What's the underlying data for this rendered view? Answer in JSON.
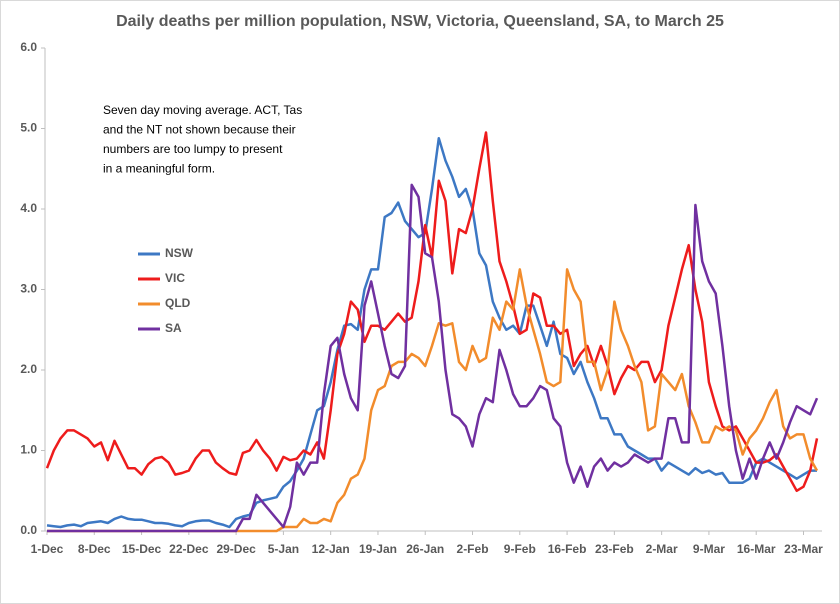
{
  "chart_data": {
    "type": "line",
    "title": "Daily deaths per million population, NSW, Victoria, Queensland, SA, to March 25",
    "annotation": [
      "Seven day moving average. ACT, Tas",
      "and the NT not shown because their",
      "numbers are too lumpy to present",
      "in a meaningful form."
    ],
    "categories": [
      "1-Dec",
      null,
      null,
      null,
      null,
      null,
      null,
      "8-Dec",
      null,
      null,
      null,
      null,
      null,
      null,
      "15-Dec",
      null,
      null,
      null,
      null,
      null,
      null,
      "22-Dec",
      null,
      null,
      null,
      null,
      null,
      null,
      "29-Dec",
      null,
      null,
      null,
      null,
      null,
      null,
      "5-Jan",
      null,
      null,
      null,
      null,
      null,
      null,
      "12-Jan",
      null,
      null,
      null,
      null,
      null,
      null,
      "19-Jan",
      null,
      null,
      null,
      null,
      null,
      null,
      "26-Jan",
      null,
      null,
      null,
      null,
      null,
      null,
      "2-Feb",
      null,
      null,
      null,
      null,
      null,
      null,
      "9-Feb",
      null,
      null,
      null,
      null,
      null,
      null,
      "16-Feb",
      null,
      null,
      null,
      null,
      null,
      null,
      "23-Feb",
      null,
      null,
      null,
      null,
      null,
      null,
      "2-Mar",
      null,
      null,
      null,
      null,
      null,
      null,
      "9-Mar",
      null,
      null,
      null,
      null,
      null,
      null,
      "16-Mar",
      null,
      null,
      null,
      null,
      null,
      null,
      "23-Mar",
      null,
      null
    ],
    "series": [
      {
        "name": "NSW",
        "color": "#3d78c4",
        "values": [
          0.07,
          0.06,
          0.05,
          0.07,
          0.08,
          0.06,
          0.1,
          0.11,
          0.12,
          0.1,
          0.15,
          0.18,
          0.15,
          0.14,
          0.14,
          0.12,
          0.1,
          0.1,
          0.09,
          0.07,
          0.06,
          0.1,
          0.12,
          0.13,
          0.13,
          0.1,
          0.08,
          0.05,
          0.15,
          0.18,
          0.2,
          0.35,
          0.38,
          0.4,
          0.42,
          0.55,
          0.62,
          0.75,
          0.9,
          1.2,
          1.5,
          1.55,
          1.85,
          2.25,
          2.55,
          2.57,
          2.5,
          3.0,
          3.25,
          3.25,
          3.9,
          3.95,
          4.08,
          3.85,
          3.75,
          3.65,
          3.7,
          4.25,
          4.88,
          4.6,
          4.4,
          4.15,
          4.25,
          4.0,
          3.45,
          3.3,
          2.85,
          2.65,
          2.5,
          2.55,
          2.45,
          2.8,
          2.8,
          2.55,
          2.3,
          2.6,
          2.2,
          2.15,
          1.95,
          2.1,
          1.85,
          1.65,
          1.4,
          1.4,
          1.2,
          1.2,
          1.05,
          1.0,
          0.95,
          0.9,
          0.9,
          0.75,
          0.85,
          0.8,
          0.75,
          0.7,
          0.78,
          0.72,
          0.75,
          0.7,
          0.72,
          0.6,
          0.6,
          0.6,
          0.65,
          0.85,
          0.9,
          0.85,
          0.8,
          0.75,
          0.7,
          0.65,
          0.7,
          0.75,
          0.75
        ]
      },
      {
        "name": "VIC",
        "color": "#ee1c1c",
        "values": [
          0.78,
          1.0,
          1.15,
          1.25,
          1.25,
          1.2,
          1.15,
          1.05,
          1.1,
          0.88,
          1.12,
          0.95,
          0.78,
          0.78,
          0.7,
          0.83,
          0.9,
          0.92,
          0.85,
          0.7,
          0.72,
          0.75,
          0.9,
          1.0,
          1.0,
          0.85,
          0.78,
          0.72,
          0.7,
          0.97,
          1.0,
          1.13,
          1.0,
          0.9,
          0.75,
          0.92,
          0.88,
          0.9,
          1.0,
          0.95,
          1.1,
          0.9,
          1.5,
          2.2,
          2.45,
          2.85,
          2.75,
          2.35,
          2.55,
          2.55,
          2.5,
          2.6,
          2.7,
          2.6,
          2.65,
          3.1,
          3.8,
          3.4,
          4.35,
          4.1,
          3.2,
          3.75,
          3.7,
          4.0,
          4.5,
          4.95,
          4.1,
          3.35,
          3.1,
          2.8,
          2.45,
          2.5,
          2.95,
          2.9,
          2.55,
          2.55,
          2.45,
          2.5,
          2.05,
          2.2,
          2.3,
          2.05,
          2.3,
          2.05,
          1.7,
          1.9,
          2.05,
          2.0,
          2.1,
          2.1,
          1.85,
          2.0,
          2.55,
          2.9,
          3.25,
          3.55,
          3.0,
          2.6,
          1.85,
          1.55,
          1.3,
          1.25,
          1.3,
          1.15,
          1.0,
          0.85,
          0.85,
          0.88,
          0.95,
          0.8,
          0.65,
          0.5,
          0.55,
          0.75,
          1.15
        ]
      },
      {
        "name": "QLD",
        "color": "#f28c2c",
        "values": [
          0,
          0,
          0,
          0,
          0,
          0,
          0,
          0,
          0,
          0,
          0,
          0,
          0,
          0,
          0,
          0,
          0,
          0,
          0,
          0,
          0,
          0,
          0,
          0,
          0,
          0,
          0,
          0,
          0,
          0,
          0,
          0,
          0,
          0,
          0,
          0.05,
          0.05,
          0.05,
          0.15,
          0.1,
          0.1,
          0.15,
          0.12,
          0.35,
          0.45,
          0.65,
          0.7,
          0.9,
          1.5,
          1.75,
          1.8,
          2.05,
          2.1,
          2.1,
          2.2,
          2.15,
          2.05,
          2.3,
          2.58,
          2.55,
          2.58,
          2.1,
          2.0,
          2.3,
          2.1,
          2.15,
          2.65,
          2.5,
          2.85,
          2.75,
          3.25,
          2.8,
          2.5,
          2.2,
          1.85,
          1.8,
          1.85,
          3.25,
          3.0,
          2.85,
          2.1,
          2.1,
          1.75,
          2.0,
          2.85,
          2.5,
          2.3,
          2.05,
          1.85,
          1.25,
          1.3,
          1.95,
          1.85,
          1.75,
          1.95,
          1.55,
          1.35,
          1.1,
          1.1,
          1.3,
          1.25,
          1.3,
          1.25,
          0.95,
          1.15,
          1.25,
          1.4,
          1.6,
          1.75,
          1.3,
          1.15,
          1.2,
          1.2,
          0.9,
          0.75
        ]
      },
      {
        "name": "SA",
        "color": "#7030a0",
        "values": [
          0,
          0,
          0,
          0,
          0,
          0,
          0,
          0,
          0,
          0,
          0,
          0,
          0,
          0,
          0,
          0,
          0,
          0,
          0,
          0,
          0,
          0,
          0,
          0,
          0,
          0,
          0,
          0,
          0,
          0.15,
          0.15,
          0.45,
          0.35,
          0.25,
          0.15,
          0.05,
          0.3,
          0.85,
          0.7,
          0.85,
          0.85,
          1.7,
          2.3,
          2.4,
          1.95,
          1.65,
          1.5,
          2.8,
          3.1,
          2.7,
          2.3,
          1.95,
          1.9,
          2.05,
          4.3,
          4.15,
          3.45,
          3.4,
          2.85,
          2.0,
          1.45,
          1.4,
          1.3,
          1.05,
          1.45,
          1.65,
          1.6,
          2.25,
          2.0,
          1.7,
          1.55,
          1.55,
          1.65,
          1.8,
          1.75,
          1.4,
          1.3,
          0.85,
          0.6,
          0.8,
          0.55,
          0.8,
          0.9,
          0.75,
          0.85,
          0.8,
          0.85,
          0.95,
          0.9,
          0.85,
          0.9,
          0.9,
          1.4,
          1.4,
          1.1,
          1.1,
          4.05,
          3.35,
          3.1,
          2.95,
          2.3,
          1.55,
          1.0,
          0.65,
          0.9,
          0.65,
          0.9,
          1.1,
          0.9,
          1.1,
          1.35,
          1.55,
          1.5,
          1.45,
          1.65
        ]
      }
    ],
    "ylim": [
      0,
      6
    ],
    "yticks": [
      {
        "value": 0,
        "label": "0.0"
      },
      {
        "value": 1,
        "label": "1.0"
      },
      {
        "value": 2,
        "label": "2.0"
      },
      {
        "value": 3,
        "label": "3.0"
      },
      {
        "value": 4,
        "label": "4.0"
      },
      {
        "value": 5,
        "label": "5.0"
      },
      {
        "value": 6,
        "label": "6.0"
      }
    ],
    "grid": false,
    "legend": "left"
  }
}
